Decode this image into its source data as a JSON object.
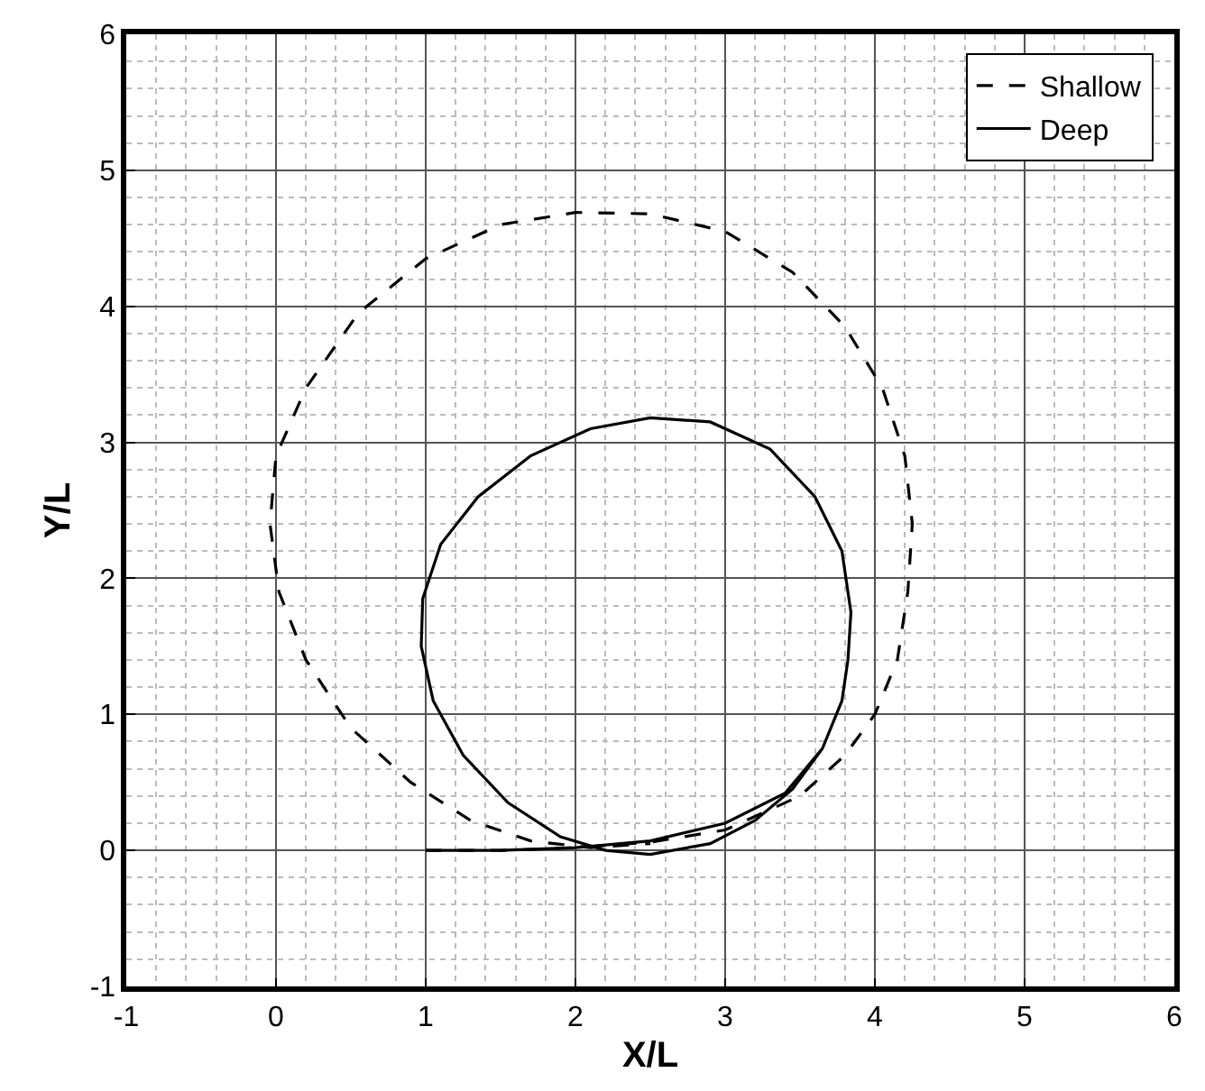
{
  "chart_data": {
    "type": "line",
    "xlabel": "X/L",
    "ylabel": "Y/L",
    "xlim": [
      -1,
      6
    ],
    "ylim": [
      -1,
      6
    ],
    "xticks": [
      -1,
      0,
      1,
      2,
      3,
      4,
      5,
      6
    ],
    "yticks": [
      -1,
      0,
      1,
      2,
      3,
      4,
      5,
      6
    ],
    "grid": true,
    "legend": "top right",
    "marker": "none",
    "series": [
      {
        "name": "Shallow",
        "color": "#000000",
        "line_style": "dashed",
        "x": [
          1,
          1.5,
          2,
          2.5,
          3,
          3.5,
          3.8,
          4.0,
          4.15,
          4.22,
          4.25,
          4.2,
          4.05,
          3.8,
          3.45,
          3,
          2.5,
          2,
          1.5,
          1,
          0.55,
          0.2,
          0,
          -0.04,
          0.02,
          0.2,
          0.5,
          0.9,
          1.3,
          1.7,
          2.1,
          2.5
        ],
        "values": [
          0,
          0,
          0.02,
          0.06,
          0.15,
          0.4,
          0.7,
          1.0,
          1.4,
          1.9,
          2.4,
          2.9,
          3.4,
          3.85,
          4.25,
          4.55,
          4.68,
          4.69,
          4.6,
          4.35,
          3.95,
          3.4,
          2.9,
          2.4,
          1.9,
          1.4,
          0.9,
          0.5,
          0.22,
          0.07,
          0.02,
          0.05
        ]
      },
      {
        "name": "Deep",
        "color": "#000000",
        "line_style": "solid",
        "x": [
          1,
          1.5,
          2,
          2.5,
          3,
          3.4,
          3.65,
          3.78,
          3.82,
          3.84,
          3.78,
          3.6,
          3.3,
          2.9,
          2.5,
          2.1,
          1.7,
          1.35,
          1.1,
          0.98,
          0.97,
          1.05,
          1.25,
          1.55,
          1.9,
          2.2,
          2.5,
          2.9,
          3.2,
          3.45,
          3.65
        ],
        "values": [
          0,
          0,
          0.02,
          0.07,
          0.2,
          0.42,
          0.75,
          1.1,
          1.4,
          1.75,
          2.2,
          2.6,
          2.95,
          3.15,
          3.18,
          3.1,
          2.9,
          2.6,
          2.25,
          1.85,
          1.5,
          1.1,
          0.7,
          0.35,
          0.1,
          0.0,
          -0.03,
          0.05,
          0.22,
          0.45,
          0.75
        ]
      }
    ]
  }
}
